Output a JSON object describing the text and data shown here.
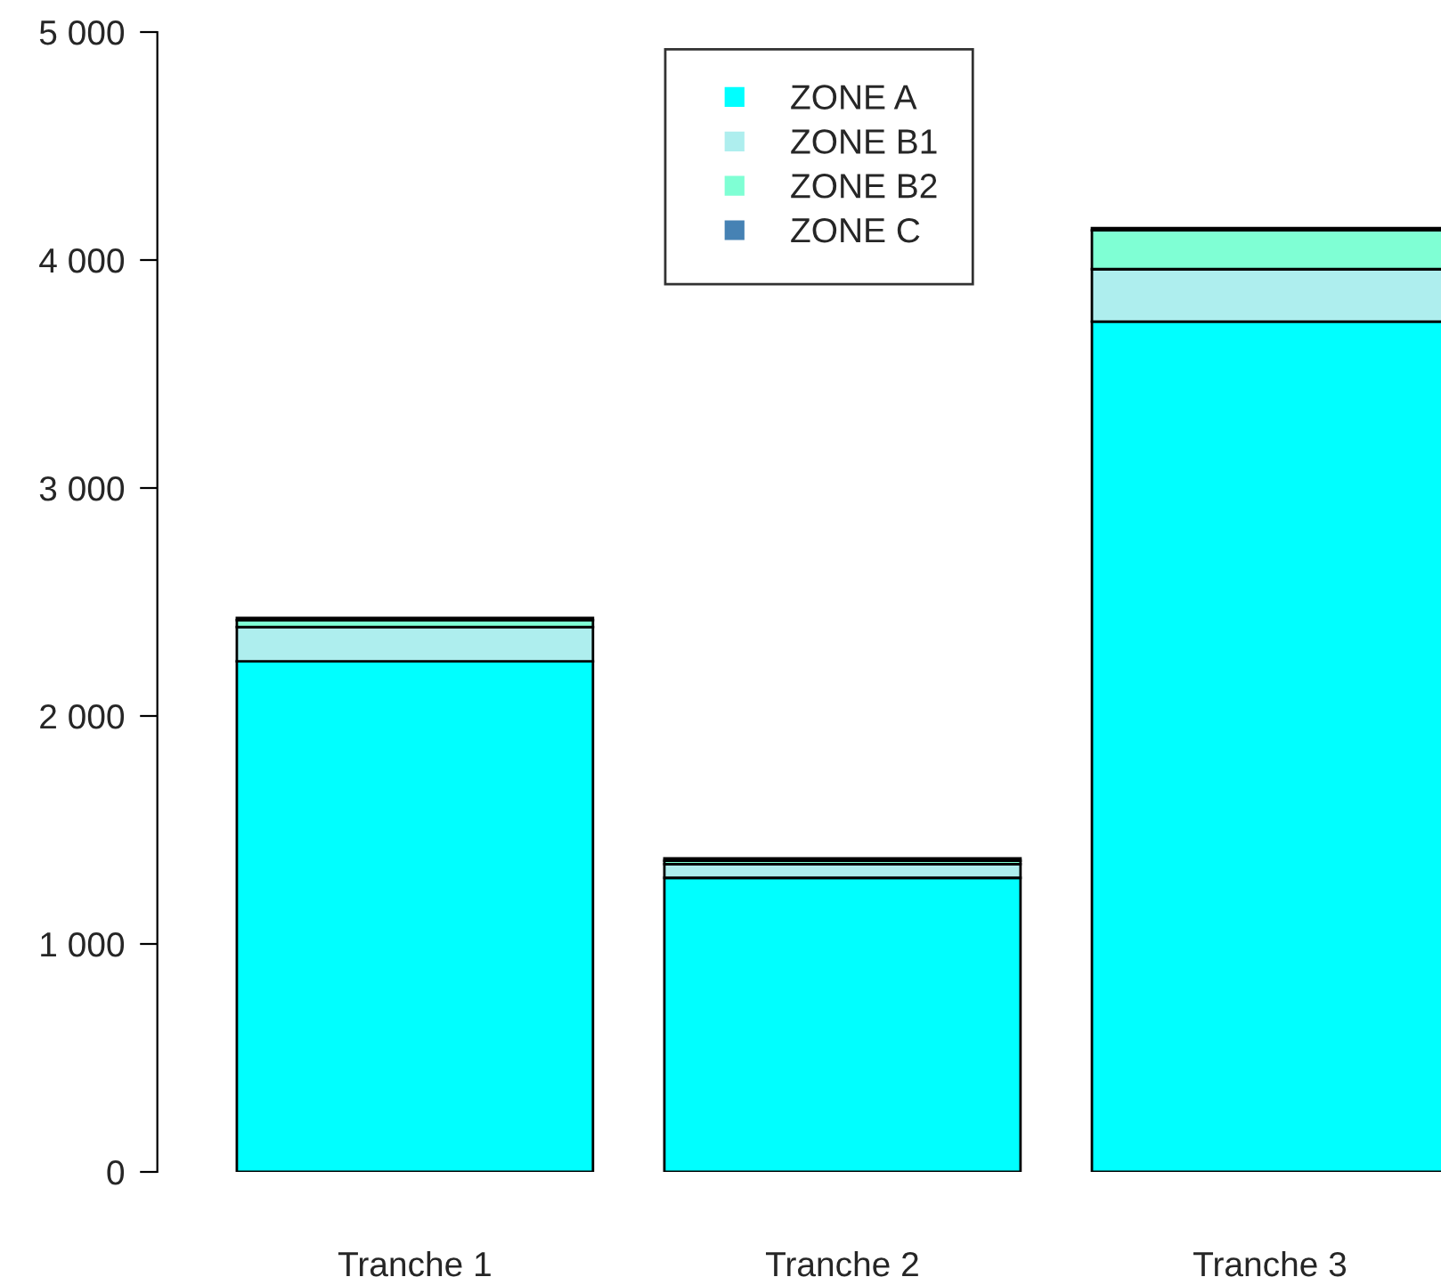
{
  "chart_data": {
    "type": "bar",
    "stacked": true,
    "categories": [
      "Tranche 1",
      "Tranche 2",
      "Tranche 3"
    ],
    "series": [
      {
        "name": "ZONE A",
        "color": "#00ffff",
        "values": [
          2240,
          1290,
          3730
        ]
      },
      {
        "name": "ZONE B1",
        "color": "#aeeeee",
        "values": [
          150,
          60,
          230
        ]
      },
      {
        "name": "ZONE B2",
        "color": "#7fffd4",
        "values": [
          30,
          15,
          170
        ]
      },
      {
        "name": "ZONE C",
        "color": "#4682b4",
        "values": [
          10,
          10,
          10
        ]
      }
    ],
    "ylim": [
      0,
      5000
    ],
    "yticks": [
      {
        "value": 0,
        "label": "0"
      },
      {
        "value": 1000,
        "label": "1 000"
      },
      {
        "value": 2000,
        "label": "2 000"
      },
      {
        "value": 3000,
        "label": "3 000"
      },
      {
        "value": 4000,
        "label": "4 000"
      },
      {
        "value": 5000,
        "label": "5 000"
      }
    ],
    "grid": false,
    "legend": "top"
  }
}
